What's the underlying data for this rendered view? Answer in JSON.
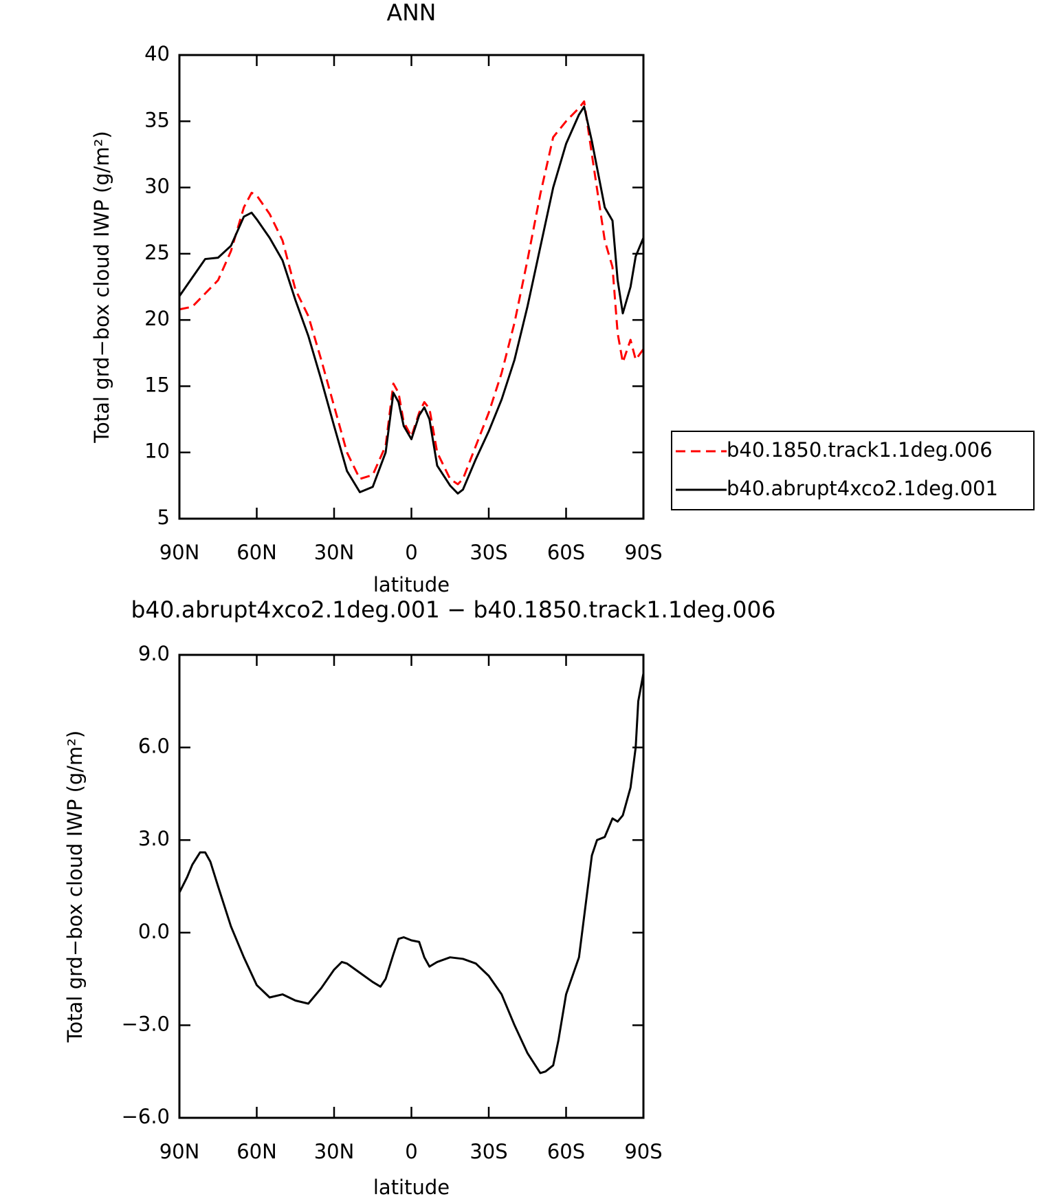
{
  "chart_data": [
    {
      "type": "line",
      "title": "ANN",
      "xlabel": "latitude",
      "ylabel": "Total grd−box cloud IWP (g/m²)",
      "x": [
        90,
        85,
        80,
        75,
        70,
        65,
        62,
        60,
        55,
        50,
        45,
        40,
        35,
        30,
        25,
        20,
        15,
        10,
        7,
        5,
        3,
        0,
        -3,
        -5,
        -7,
        -10,
        -15,
        -18,
        -20,
        -25,
        -30,
        -35,
        -40,
        -45,
        -50,
        -55,
        -60,
        -65,
        -67,
        -70,
        -75,
        -78,
        -80,
        -82,
        -85,
        -87,
        -90
      ],
      "series": [
        {
          "name": "b40.1850.track1.1deg.006",
          "color": "#ff0000",
          "dash": true,
          "values": [
            20.8,
            21.0,
            22.0,
            23.0,
            25.2,
            28.5,
            29.6,
            29.4,
            28.0,
            26.0,
            22.3,
            20.3,
            17.0,
            13.5,
            10.0,
            8.0,
            8.3,
            10.5,
            15.2,
            14.5,
            12.3,
            11.2,
            13.0,
            13.8,
            13.3,
            10.0,
            8.0,
            7.6,
            8.0,
            10.5,
            13.0,
            16.0,
            19.8,
            24.5,
            29.5,
            33.8,
            35.0,
            36.0,
            36.5,
            32.5,
            26.0,
            24.0,
            19.0,
            16.8,
            18.5,
            17.0,
            17.8
          ]
        },
        {
          "name": "b40.abrupt4xco2.1deg.001",
          "color": "#000000",
          "dash": false,
          "values": [
            21.8,
            23.2,
            24.6,
            24.7,
            25.6,
            27.8,
            28.1,
            27.6,
            26.2,
            24.5,
            21.5,
            18.8,
            15.5,
            12.0,
            8.6,
            7.0,
            7.4,
            10.0,
            14.5,
            13.8,
            12.0,
            11.0,
            12.8,
            13.4,
            12.5,
            9.0,
            7.5,
            6.9,
            7.2,
            9.5,
            11.6,
            14.0,
            17.0,
            21.0,
            25.5,
            30.0,
            33.3,
            35.5,
            36.1,
            33.5,
            28.5,
            27.5,
            23.0,
            20.5,
            22.5,
            24.8,
            26.2
          ]
        }
      ],
      "xlim": [
        90,
        -90
      ],
      "xticks": [
        {
          "value": 90,
          "label": "90N"
        },
        {
          "value": 60,
          "label": "60N"
        },
        {
          "value": 30,
          "label": "30N"
        },
        0,
        {
          "value": -30,
          "label": "30S"
        },
        {
          "value": -60,
          "label": "60S"
        },
        {
          "value": -90,
          "label": "90S"
        }
      ],
      "ylim": [
        5,
        40
      ],
      "yticks": [
        5,
        10,
        15,
        20,
        25,
        30,
        35,
        40
      ],
      "legend": "right"
    },
    {
      "type": "line",
      "title": "b40.abrupt4xco2.1deg.001 − b40.1850.track1.1deg.006",
      "xlabel": "latitude",
      "ylabel": "Total grd−box cloud IWP (g/m²)",
      "x": [
        90,
        87,
        85,
        82,
        80,
        78,
        75,
        70,
        65,
        60,
        55,
        50,
        45,
        40,
        35,
        30,
        27,
        25,
        20,
        15,
        12,
        10,
        7,
        5,
        3,
        0,
        -3,
        -5,
        -7,
        -10,
        -15,
        -20,
        -25,
        -30,
        -35,
        -40,
        -45,
        -50,
        -52,
        -55,
        -57,
        -60,
        -65,
        -70,
        -72,
        -75,
        -78,
        -80,
        -82,
        -85,
        -87,
        -88,
        -90
      ],
      "series": [
        {
          "color": "#000000",
          "dash": false,
          "values": [
            1.3,
            1.8,
            2.2,
            2.6,
            2.6,
            2.3,
            1.5,
            0.2,
            -0.8,
            -1.7,
            -2.1,
            -2.0,
            -2.2,
            -2.3,
            -1.8,
            -1.2,
            -0.95,
            -1.0,
            -1.3,
            -1.6,
            -1.75,
            -1.5,
            -0.7,
            -0.2,
            -0.15,
            -0.25,
            -0.3,
            -0.8,
            -1.1,
            -0.95,
            -0.8,
            -0.85,
            -1.0,
            -1.4,
            -2.0,
            -3.0,
            -3.9,
            -4.55,
            -4.5,
            -4.3,
            -3.5,
            -2.0,
            -0.8,
            2.5,
            3.0,
            3.1,
            3.7,
            3.6,
            3.8,
            4.7,
            6.0,
            7.5,
            8.4
          ]
        }
      ],
      "xlim": [
        90,
        -90
      ],
      "xticks": [
        {
          "value": 90,
          "label": "90N"
        },
        {
          "value": 60,
          "label": "60N"
        },
        {
          "value": 30,
          "label": "30N"
        },
        0,
        {
          "value": -30,
          "label": "30S"
        },
        {
          "value": -60,
          "label": "60S"
        },
        {
          "value": -90,
          "label": "90S"
        }
      ],
      "ylim": [
        -6,
        9
      ],
      "yticks": [
        {
          "value": -6,
          "label": "−6.0"
        },
        {
          "value": -3,
          "label": "−3.0"
        },
        {
          "value": 0,
          "label": "0.0"
        },
        {
          "value": 3,
          "label": "3.0"
        },
        {
          "value": 6,
          "label": "6.0"
        },
        {
          "value": 9,
          "label": "9.0"
        }
      ]
    }
  ]
}
